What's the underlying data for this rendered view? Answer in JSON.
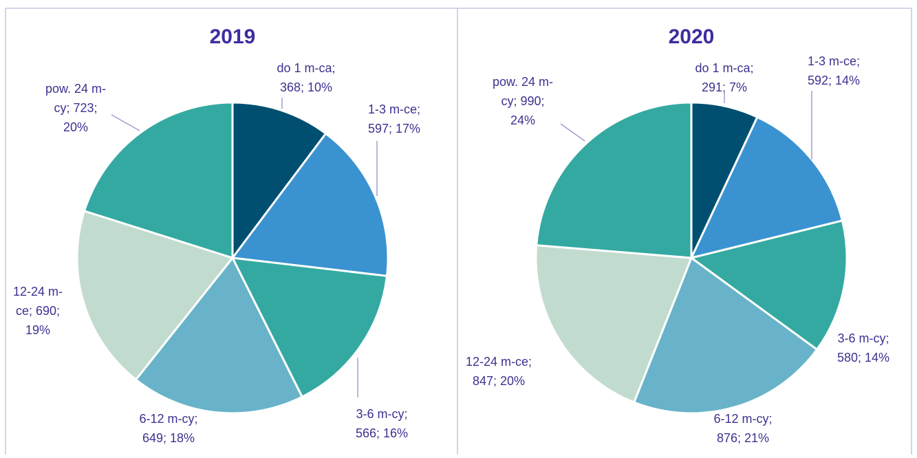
{
  "chart_data": [
    {
      "type": "pie",
      "title": "2019",
      "values": [
        368,
        597,
        566,
        649,
        690,
        723
      ],
      "value_labels": [
        [
          "do 1 m-ca;",
          "368; 10%"
        ],
        [
          "1-3 m-ce;",
          "597; 17%"
        ],
        [
          "3-6 m-cy;",
          "566; 16%"
        ],
        [
          "6-12 m-cy;",
          "649; 18%"
        ],
        [
          "12-24 m-",
          "ce; 690;",
          "19%"
        ],
        [
          "pow. 24 m-",
          "cy; 723;",
          "20%"
        ]
      ],
      "colors": [
        "#004f71",
        "#3a93d0",
        "#34a9a1",
        "#68b3c9",
        "#c2dbcf",
        "#34a9a1"
      ]
    },
    {
      "type": "pie",
      "title": "2020",
      "values": [
        291,
        592,
        580,
        876,
        847,
        990
      ],
      "value_labels": [
        [
          "do 1 m-ca;",
          "291; 7%"
        ],
        [
          "1-3 m-ce;",
          "592; 14%"
        ],
        [
          "3-6 m-cy;",
          "580; 14%"
        ],
        [
          "6-12 m-cy;",
          "876; 21%"
        ],
        [
          "12-24 m-ce;",
          "847; 20%"
        ],
        [
          "pow. 24 m-",
          "cy; 990;",
          "24%"
        ]
      ],
      "colors": [
        "#004f71",
        "#3a93d0",
        "#34a9a1",
        "#68b3c9",
        "#c2dbcf",
        "#34a9a1"
      ]
    }
  ]
}
